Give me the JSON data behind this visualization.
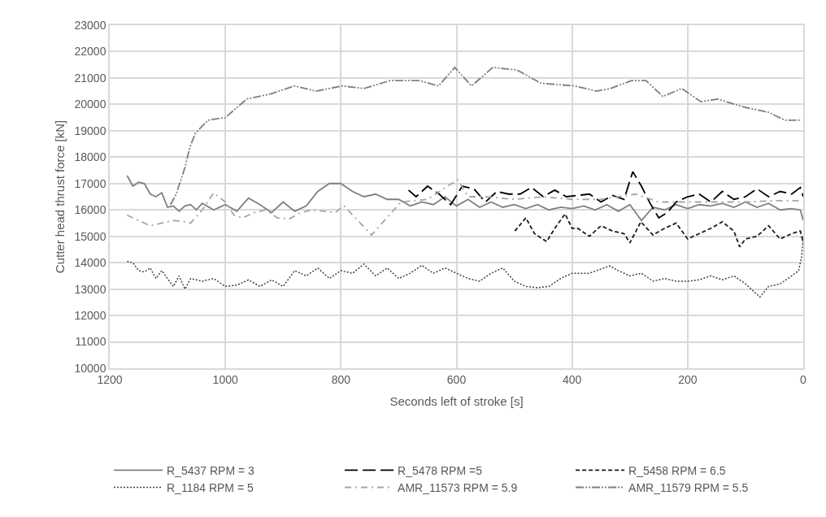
{
  "chart_data": {
    "type": "line",
    "xlabel": "Seconds left of stroke [s]",
    "ylabel": "Cutter head thrust force [kN]",
    "xlim": [
      1200,
      0
    ],
    "xticks": [
      1200,
      1000,
      800,
      600,
      400,
      200,
      0
    ],
    "ylim": [
      10000,
      23000
    ],
    "yticks": [
      10000,
      11000,
      12000,
      13000,
      14000,
      15000,
      16000,
      17000,
      18000,
      19000,
      20000,
      21000,
      22000,
      23000
    ],
    "grid": true,
    "legend": "bottom",
    "marker": "none",
    "series": [
      {
        "name": "R_5437 RPM = 3",
        "color": "#808080",
        "line_style": "solid",
        "x": [
          1170,
          1160,
          1150,
          1140,
          1130,
          1120,
          1110,
          1100,
          1090,
          1080,
          1070,
          1060,
          1050,
          1040,
          1020,
          1000,
          980,
          960,
          940,
          920,
          900,
          880,
          860,
          840,
          820,
          800,
          780,
          760,
          740,
          720,
          700,
          680,
          660,
          640,
          620,
          600,
          580,
          560,
          540,
          520,
          500,
          480,
          460,
          440,
          420,
          400,
          380,
          360,
          340,
          320,
          300,
          280,
          260,
          240,
          220,
          200,
          180,
          160,
          140,
          120,
          100,
          80,
          60,
          40,
          20,
          5,
          0
        ],
        "values": [
          17300,
          16900,
          17050,
          17000,
          16600,
          16500,
          16650,
          16100,
          16150,
          15950,
          16150,
          16200,
          16000,
          16250,
          16000,
          16200,
          15950,
          16450,
          16200,
          15900,
          16300,
          15950,
          16150,
          16700,
          17000,
          17000,
          16700,
          16500,
          16600,
          16400,
          16400,
          16150,
          16300,
          16200,
          16500,
          16150,
          16400,
          16100,
          16300,
          16100,
          16200,
          16050,
          16200,
          16000,
          16100,
          16050,
          16150,
          16000,
          16200,
          15950,
          16200,
          15600,
          16100,
          16000,
          16200,
          16050,
          16200,
          16150,
          16250,
          16100,
          16300,
          16100,
          16250,
          16000,
          16050,
          16000,
          15600
        ]
      },
      {
        "name": "R_5478 RPM =5",
        "color": "#000000",
        "line_style": "long dashed",
        "x": [
          683,
          670,
          650,
          630,
          610,
          590,
          570,
          550,
          530,
          510,
          490,
          470,
          450,
          430,
          410,
          390,
          370,
          350,
          330,
          310,
          295,
          280,
          265,
          250,
          235,
          220,
          200,
          180,
          160,
          140,
          120,
          100,
          80,
          60,
          40,
          20,
          5,
          0
        ],
        "values": [
          16750,
          16500,
          16900,
          16600,
          16200,
          16900,
          16800,
          16300,
          16700,
          16600,
          16600,
          16850,
          16500,
          16750,
          16500,
          16550,
          16600,
          16300,
          16550,
          16400,
          17450,
          16900,
          16250,
          15700,
          15900,
          16300,
          16500,
          16600,
          16300,
          16700,
          16400,
          16500,
          16800,
          16500,
          16700,
          16600,
          16850,
          16500
        ]
      },
      {
        "name": "R_5458 RPM = 6.5",
        "color": "#1a1a1a",
        "line_style": "dashed",
        "x": [
          499,
          480,
          465,
          444,
          430,
          412,
          400,
          390,
          370,
          350,
          330,
          310,
          300,
          281,
          260,
          240,
          220,
          200,
          180,
          160,
          140,
          120,
          110,
          100,
          80,
          60,
          40,
          20,
          5,
          0
        ],
        "values": [
          15200,
          15700,
          15100,
          14800,
          15300,
          15850,
          15300,
          15300,
          15000,
          15400,
          15200,
          15100,
          14750,
          15550,
          15050,
          15300,
          15500,
          14900,
          15100,
          15300,
          15550,
          15200,
          14600,
          14900,
          15000,
          15400,
          14900,
          15100,
          15200,
          14750
        ]
      },
      {
        "name": "R_1184 RPM = 5",
        "color": "#404040",
        "line_style": "dotted",
        "x": [
          1170,
          1160,
          1150,
          1140,
          1130,
          1120,
          1110,
          1100,
          1090,
          1080,
          1070,
          1060,
          1040,
          1020,
          1000,
          980,
          960,
          940,
          920,
          900,
          880,
          860,
          840,
          820,
          800,
          780,
          760,
          740,
          720,
          700,
          680,
          660,
          640,
          620,
          600,
          580,
          560,
          540,
          520,
          500,
          480,
          460,
          440,
          420,
          400,
          370,
          335,
          320,
          300,
          280,
          260,
          240,
          220,
          200,
          180,
          160,
          140,
          120,
          100,
          90,
          75,
          60,
          40,
          20,
          8,
          3,
          0
        ],
        "values": [
          14050,
          14000,
          13700,
          13650,
          13800,
          13400,
          13700,
          13400,
          13100,
          13500,
          13000,
          13400,
          13300,
          13400,
          13100,
          13150,
          13350,
          13100,
          13350,
          13100,
          13700,
          13500,
          13800,
          13400,
          13700,
          13600,
          13950,
          13500,
          13800,
          13400,
          13600,
          13900,
          13600,
          13800,
          13600,
          13400,
          13300,
          13600,
          13800,
          13300,
          13100,
          13050,
          13100,
          13400,
          13600,
          13600,
          13880,
          13700,
          13500,
          13600,
          13300,
          13400,
          13300,
          13300,
          13350,
          13500,
          13350,
          13500,
          13200,
          13000,
          12700,
          13100,
          13200,
          13500,
          13700,
          14200,
          15000
        ]
      },
      {
        "name": "AMR_11573 RPM = 5.9",
        "color": "#a6a6a6",
        "line_style": "dash dot",
        "x": [
          1170,
          1150,
          1130,
          1110,
          1090,
          1070,
          1060,
          1040,
          1020,
          1000,
          985,
          970,
          950,
          930,
          910,
          890,
          870,
          850,
          830,
          810,
          795,
          747,
          696,
          650,
          598,
          580,
          550,
          500,
          450,
          400,
          350,
          290,
          250,
          200,
          150,
          100,
          50,
          0
        ],
        "values": [
          15800,
          15600,
          15400,
          15500,
          15600,
          15550,
          15500,
          16000,
          16650,
          16300,
          15800,
          15700,
          15900,
          16000,
          15700,
          15650,
          15900,
          16000,
          15950,
          15900,
          16160,
          15050,
          16300,
          16400,
          17150,
          16500,
          16500,
          16400,
          16500,
          16400,
          16400,
          16600,
          16300,
          16300,
          16300,
          16300,
          16350,
          16350
        ]
      },
      {
        "name": "AMR_11579 RPM = 5.5",
        "color": "#7f7f7f",
        "line_style": "long dash dot dot",
        "x": [
          1095,
          1085,
          1070,
          1061,
          1052,
          1030,
          1000,
          963,
          921,
          880,
          843,
          798,
          760,
          715,
          665,
          631,
          603,
          574,
          537,
          495,
          454,
          396,
          358,
          334,
          297,
          272,
          243,
          210,
          177,
          148,
          103,
          60,
          32,
          3
        ],
        "values": [
          16200,
          16600,
          17600,
          18400,
          18900,
          19400,
          19500,
          20200,
          20400,
          20700,
          20500,
          20700,
          20600,
          20900,
          20900,
          20700,
          21400,
          20700,
          21400,
          21300,
          20800,
          20700,
          20500,
          20600,
          20900,
          20900,
          20300,
          20600,
          20100,
          20200,
          19900,
          19700,
          19400,
          19400
        ]
      }
    ]
  }
}
